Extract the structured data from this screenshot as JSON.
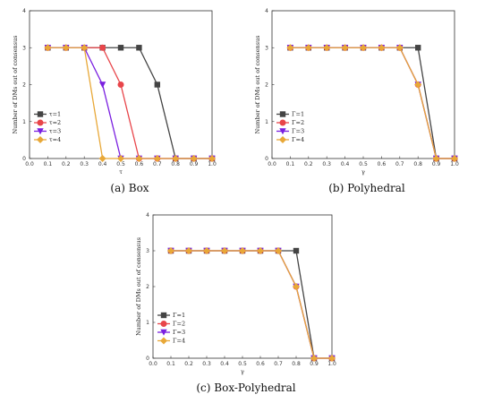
{
  "chart_data": [
    {
      "type": "line",
      "caption": "(a) Box",
      "xlabel": "τ",
      "ylabel": "Number of DMs out of consensus",
      "xlim": [
        0.0,
        1.0
      ],
      "ylim": [
        0,
        4
      ],
      "xticks": [
        "0.0",
        "0.1",
        "0.2",
        "0.3",
        "0.4",
        "0.5",
        "0.6",
        "0.7",
        "0.8",
        "0.9",
        "1.0"
      ],
      "yticks": [
        "0",
        "1",
        "2",
        "3",
        "4"
      ],
      "legend_position": "left",
      "x": [
        0.1,
        0.2,
        0.3,
        0.4,
        0.5,
        0.6,
        0.7,
        0.8,
        0.9,
        1.0
      ],
      "series": [
        {
          "name": "τ=1",
          "color": "#444444",
          "marker": "square",
          "values": [
            3,
            3,
            3,
            3,
            3,
            3,
            2,
            0,
            0,
            0
          ]
        },
        {
          "name": "τ=2",
          "color": "#e8454a",
          "marker": "circle",
          "values": [
            3,
            3,
            3,
            3,
            2,
            0,
            0,
            0,
            0,
            0
          ]
        },
        {
          "name": "τ=3",
          "color": "#7a1fe0",
          "marker": "triangle",
          "values": [
            3,
            3,
            3,
            2,
            0,
            0,
            0,
            0,
            0,
            0
          ]
        },
        {
          "name": "τ=4",
          "color": "#e8a838",
          "marker": "diamond",
          "values": [
            3,
            3,
            3,
            0,
            0,
            0,
            0,
            0,
            0,
            0
          ]
        }
      ]
    },
    {
      "type": "line",
      "caption": "(b) Polyhedral",
      "xlabel": "γ",
      "ylabel": "Number of DMs out of consensus",
      "xlim": [
        0.0,
        1.0
      ],
      "ylim": [
        0,
        4
      ],
      "xticks": [
        "0.0",
        "0.1",
        "0.2",
        "0.3",
        "0.4",
        "0.5",
        "0.6",
        "0.7",
        "0.8",
        "0.9",
        "1.0"
      ],
      "yticks": [
        "0",
        "1",
        "2",
        "3",
        "4"
      ],
      "legend_position": "left",
      "x": [
        0.1,
        0.2,
        0.3,
        0.4,
        0.5,
        0.6,
        0.7,
        0.8,
        0.9,
        1.0
      ],
      "series": [
        {
          "name": "Γ=1",
          "color": "#444444",
          "marker": "square",
          "values": [
            3,
            3,
            3,
            3,
            3,
            3,
            3,
            3,
            0,
            0
          ]
        },
        {
          "name": "Γ=2",
          "color": "#e8454a",
          "marker": "circle",
          "values": [
            3,
            3,
            3,
            3,
            3,
            3,
            3,
            2,
            0,
            0
          ]
        },
        {
          "name": "Γ=3",
          "color": "#7a1fe0",
          "marker": "triangle",
          "values": [
            3,
            3,
            3,
            3,
            3,
            3,
            3,
            2,
            0,
            0
          ]
        },
        {
          "name": "Γ=4",
          "color": "#e8a838",
          "marker": "diamond",
          "values": [
            3,
            3,
            3,
            3,
            3,
            3,
            3,
            2,
            0,
            0
          ]
        }
      ]
    },
    {
      "type": "line",
      "caption": "(c) Box-Polyhedral",
      "xlabel": "γ",
      "ylabel": "Number of DMs out of consensus",
      "xlim": [
        0.0,
        1.0
      ],
      "ylim": [
        0,
        4
      ],
      "xticks": [
        "0.0",
        "0.1",
        "0.2",
        "0.3",
        "0.4",
        "0.5",
        "0.6",
        "0.7",
        "0.8",
        "0.9",
        "1.0"
      ],
      "yticks": [
        "0",
        "1",
        "2",
        "3",
        "4"
      ],
      "legend_position": "left",
      "x": [
        0.1,
        0.2,
        0.3,
        0.4,
        0.5,
        0.6,
        0.7,
        0.8,
        0.9,
        1.0
      ],
      "series": [
        {
          "name": "Γ=1",
          "color": "#444444",
          "marker": "square",
          "values": [
            3,
            3,
            3,
            3,
            3,
            3,
            3,
            3,
            0,
            0
          ]
        },
        {
          "name": "Γ=2",
          "color": "#e8454a",
          "marker": "circle",
          "values": [
            3,
            3,
            3,
            3,
            3,
            3,
            3,
            2,
            0,
            0
          ]
        },
        {
          "name": "Γ=3",
          "color": "#7a1fe0",
          "marker": "triangle",
          "values": [
            3,
            3,
            3,
            3,
            3,
            3,
            3,
            2,
            0,
            0
          ]
        },
        {
          "name": "Γ=4",
          "color": "#e8a838",
          "marker": "diamond",
          "values": [
            3,
            3,
            3,
            3,
            3,
            3,
            3,
            2,
            0,
            0
          ]
        }
      ]
    }
  ]
}
